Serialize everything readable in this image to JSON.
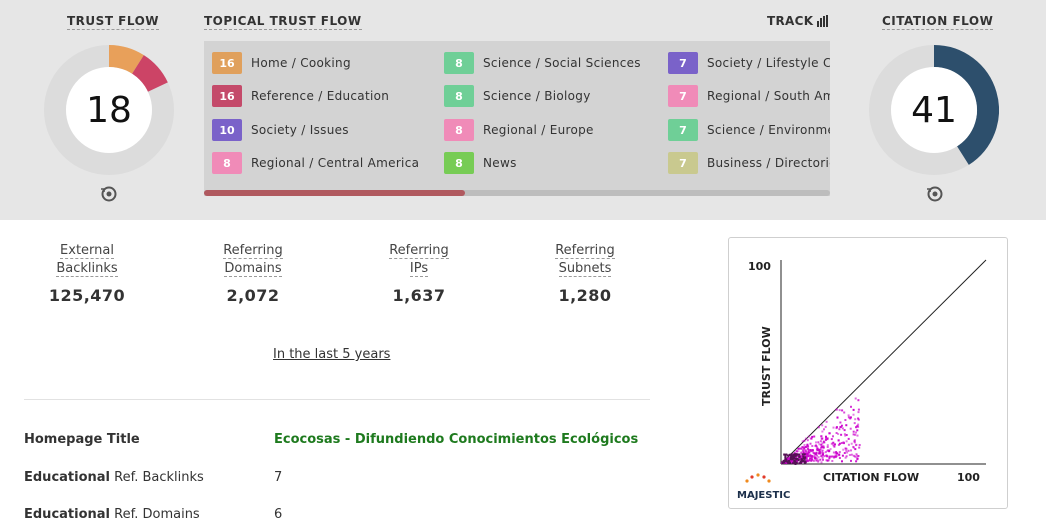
{
  "trust_flow": {
    "title": "TRUST FLOW",
    "value": "18",
    "segment_colors": [
      "#e8a05a",
      "#cc4466"
    ],
    "track_color": "#dcdcdc"
  },
  "citation_flow": {
    "title": "CITATION FLOW",
    "value": "41",
    "arc_color": "#2d4f6c",
    "track_color": "#dcdcdc"
  },
  "topical_trust_flow": {
    "title": "TOPICAL TRUST FLOW",
    "track_label": "TRACK",
    "columns": [
      [
        {
          "score": "16",
          "label": "Home / Cooking",
          "color": "#e0a05c"
        },
        {
          "score": "16",
          "label": "Reference / Education",
          "color": "#c44a6a"
        },
        {
          "score": "10",
          "label": "Society / Issues",
          "color": "#7a62c9"
        },
        {
          "score": "8",
          "label": "Regional / Central America",
          "color": "#f08bb8"
        }
      ],
      [
        {
          "score": "8",
          "label": "Science / Social Sciences",
          "color": "#6fcf97"
        },
        {
          "score": "8",
          "label": "Science / Biology",
          "color": "#6fcf97"
        },
        {
          "score": "8",
          "label": "Regional / Europe",
          "color": "#f08bb8"
        },
        {
          "score": "8",
          "label": "News",
          "color": "#77cc55"
        }
      ],
      [
        {
          "score": "7",
          "label": "Society / Lifestyle Choices",
          "color": "#7a62c9"
        },
        {
          "score": "7",
          "label": "Regional / South America",
          "color": "#f08bb8"
        },
        {
          "score": "7",
          "label": "Science / Environment",
          "color": "#6fcf97"
        },
        {
          "score": "7",
          "label": "Business / Directories",
          "color": "#c9c98f"
        }
      ]
    ]
  },
  "stats": [
    {
      "label_line1": "External",
      "label_line2": "Backlinks",
      "value": "125,470"
    },
    {
      "label_line1": "Referring",
      "label_line2": "Domains",
      "value": "2,072"
    },
    {
      "label_line1": "Referring",
      "label_line2": "IPs",
      "value": "1,637"
    },
    {
      "label_line1": "Referring",
      "label_line2": "Subnets",
      "value": "1,280"
    }
  ],
  "period_link": "In the last 5 years",
  "info": {
    "homepage_title_label": "Homepage Title",
    "homepage_title_value": "Ecocosas - Difundiendo Conocimientos Ecológicos",
    "edu_backlinks_label_bold": "Educational",
    "edu_backlinks_label_rest": " Ref. Backlinks",
    "edu_backlinks_value": "7",
    "edu_domains_label_bold": "Educational",
    "edu_domains_label_rest": " Ref. Domains",
    "edu_domains_value": "6"
  },
  "scatter": {
    "y_max_label": "100",
    "x_max_label": "100",
    "y_axis_label": "TRUST FLOW",
    "x_axis_label": "CITATION FLOW",
    "brand": "MAJESTIC",
    "point_color": "#cc00cc"
  }
}
